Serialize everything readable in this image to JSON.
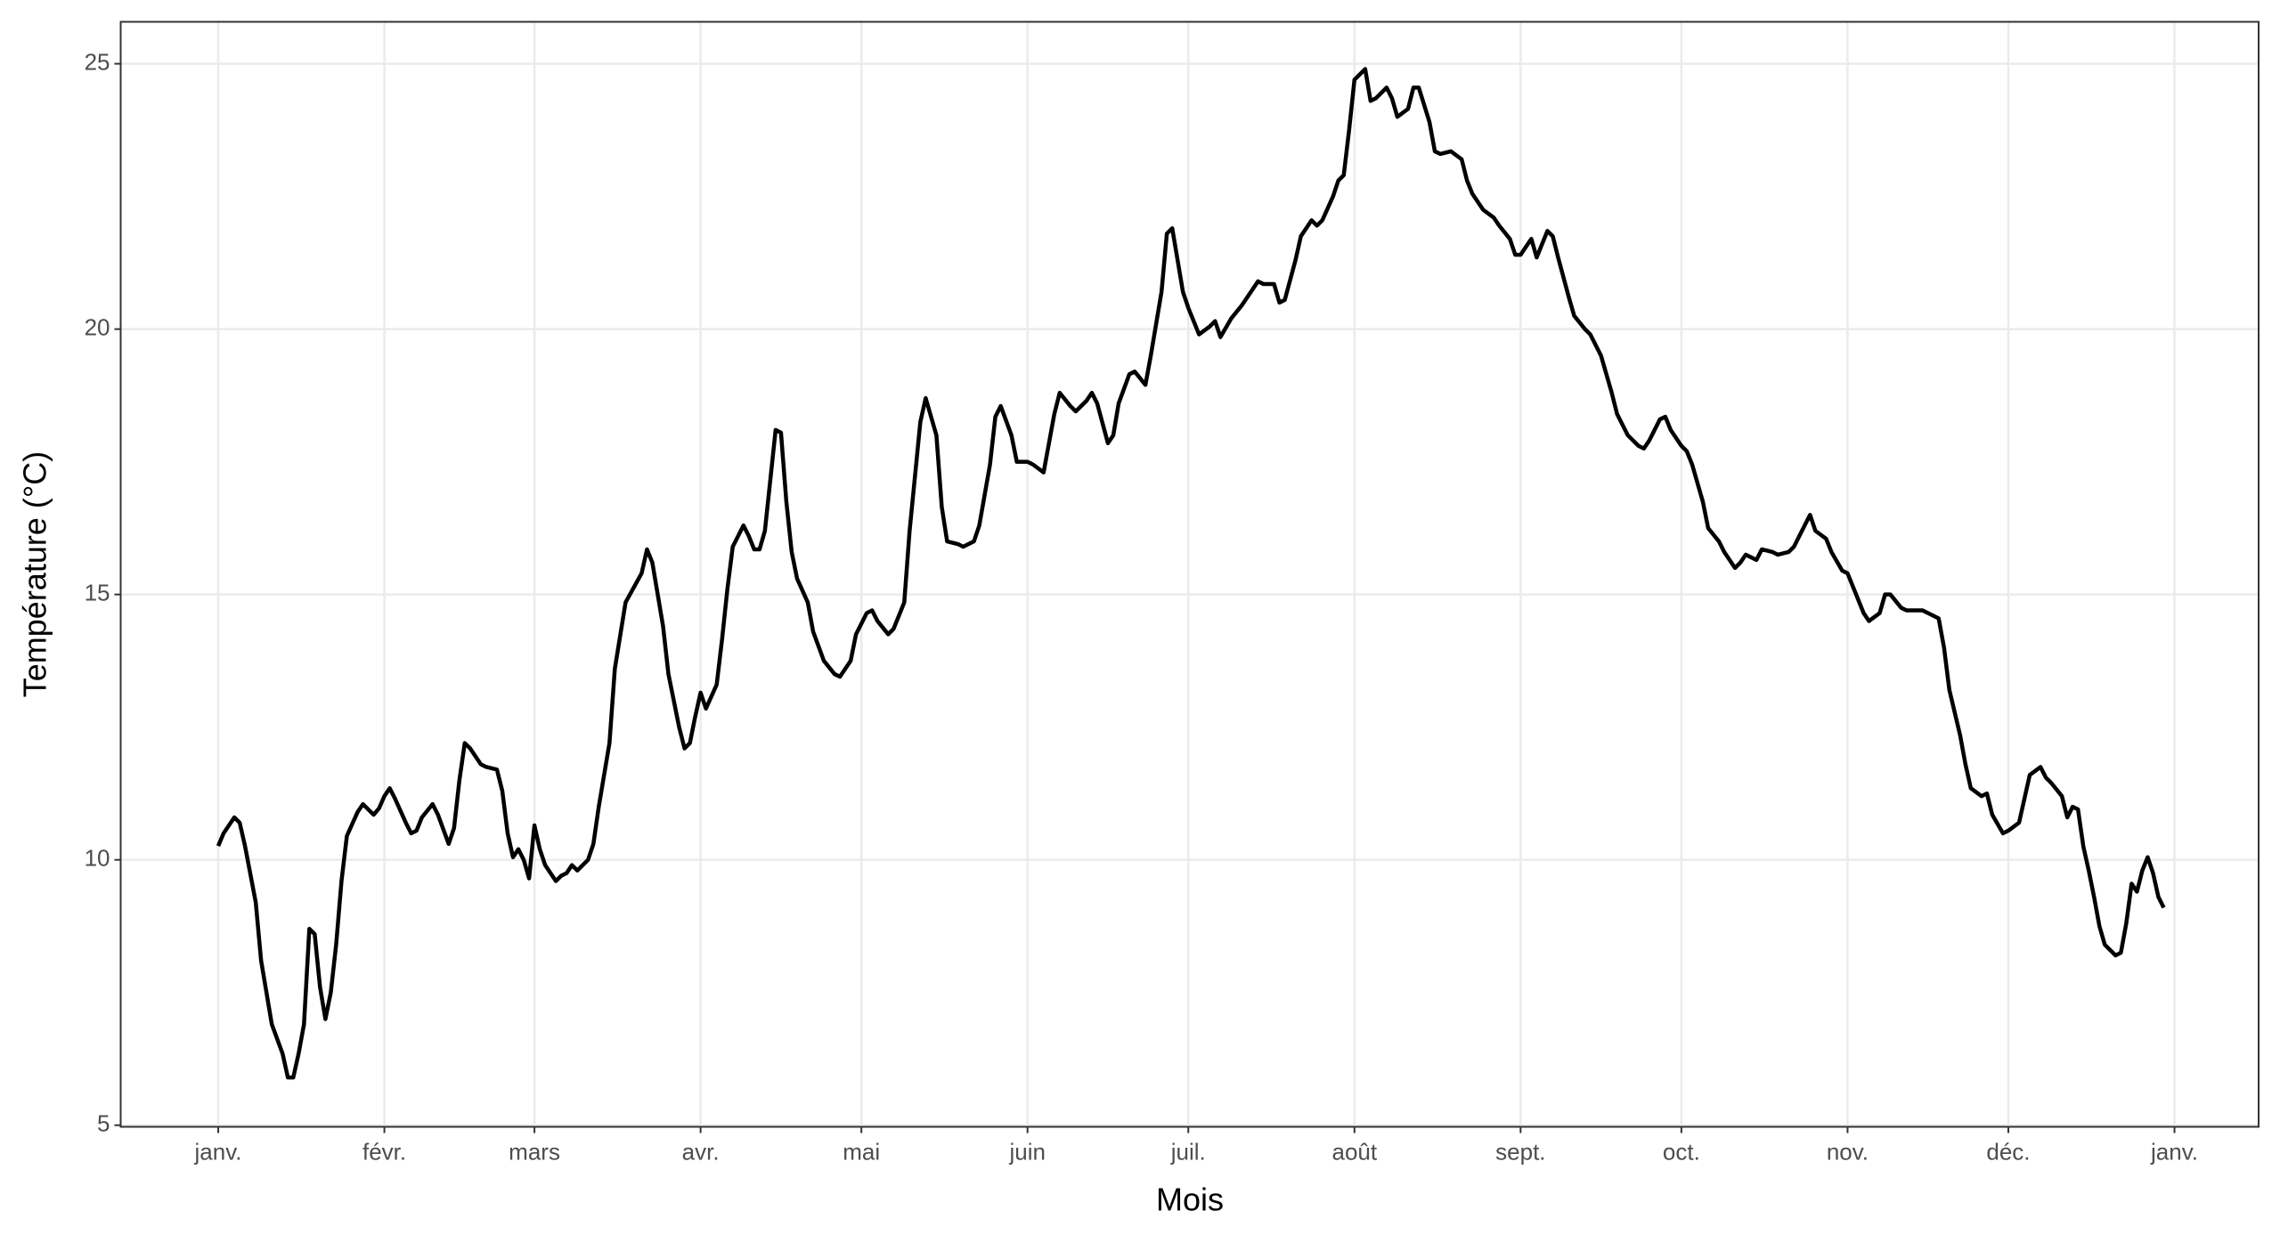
{
  "chart_data": {
    "type": "line",
    "x_label": "Mois",
    "y_label": "Température (°C)",
    "color": "#000000",
    "grid": true,
    "xlim": [
      -17.2,
      381.7
    ],
    "ylim": [
      4.97,
      25.79
    ],
    "xticks": [
      {
        "value": 1,
        "label": "janv."
      },
      {
        "value": 32,
        "label": "févr."
      },
      {
        "value": 60,
        "label": "mars"
      },
      {
        "value": 91,
        "label": "avr."
      },
      {
        "value": 121,
        "label": "mai"
      },
      {
        "value": 152,
        "label": "juin"
      },
      {
        "value": 182,
        "label": "juil."
      },
      {
        "value": 213,
        "label": "août"
      },
      {
        "value": 244,
        "label": "sept."
      },
      {
        "value": 274,
        "label": "oct."
      },
      {
        "value": 305,
        "label": "nov."
      },
      {
        "value": 335,
        "label": "déc."
      },
      {
        "value": 366,
        "label": "janv."
      }
    ],
    "yticks": [
      5,
      10,
      15,
      20,
      25
    ],
    "x": [
      1,
      2,
      4,
      5,
      6,
      8,
      9,
      11,
      13,
      14,
      15,
      16,
      17,
      18,
      19,
      20,
      21,
      22,
      23,
      24,
      25,
      27,
      28,
      29,
      30,
      31,
      32,
      33,
      34,
      36,
      37,
      38,
      39,
      41,
      42,
      44,
      45,
      46,
      47,
      48,
      50,
      51,
      53,
      54,
      55,
      56,
      57,
      58,
      59,
      60,
      61,
      62,
      64,
      65,
      66,
      67,
      68,
      70,
      71,
      72,
      74,
      75,
      77,
      80,
      81,
      82,
      84,
      85,
      87,
      88,
      89,
      90,
      91,
      92,
      94,
      95,
      96,
      97,
      99,
      100,
      101,
      102,
      103,
      104,
      105,
      106,
      107,
      108,
      109,
      111,
      112,
      114,
      116,
      117,
      119,
      120,
      122,
      123,
      124,
      126,
      127,
      129,
      130,
      132,
      133,
      135,
      136,
      137,
      139,
      140,
      142,
      143,
      145,
      146,
      147,
      149,
      150,
      152,
      153,
      155,
      156,
      157,
      158,
      160,
      161,
      163,
      164,
      165,
      167,
      168,
      169,
      171,
      172,
      174,
      175,
      177,
      178,
      179,
      181,
      182,
      184,
      186,
      187,
      188,
      190,
      192,
      193,
      195,
      196,
      198,
      199,
      200,
      202,
      203,
      205,
      206,
      207,
      209,
      210,
      211,
      212,
      213,
      215,
      216,
      217,
      219,
      220,
      221,
      223,
      224,
      225,
      227,
      228,
      229,
      231,
      233,
      234,
      235,
      237,
      239,
      240,
      242,
      243,
      244,
      246,
      247,
      249,
      250,
      251,
      253,
      254,
      256,
      257,
      259,
      261,
      262,
      264,
      266,
      267,
      268,
      270,
      271,
      272,
      274,
      275,
      276,
      278,
      279,
      281,
      282,
      284,
      285,
      286,
      288,
      289,
      291,
      292,
      294,
      295,
      297,
      298,
      299,
      301,
      302,
      304,
      305,
      307,
      308,
      309,
      311,
      312,
      313,
      315,
      316,
      318,
      319,
      320,
      322,
      323,
      324,
      326,
      327,
      328,
      330,
      331,
      332,
      334,
      335,
      337,
      338,
      339,
      341,
      342,
      343,
      345,
      346,
      347,
      348,
      349,
      350,
      351,
      352,
      353,
      354,
      355,
      356,
      357,
      358,
      359,
      360,
      361,
      362,
      363,
      364
    ],
    "values": [
      10.26,
      10.5,
      10.8,
      10.7,
      10.26,
      9.2,
      8.1,
      6.9,
      6.35,
      5.9,
      5.9,
      6.35,
      6.9,
      8.7,
      8.6,
      7.6,
      7.0,
      7.5,
      8.4,
      9.6,
      10.45,
      10.9,
      11.05,
      10.95,
      10.85,
      10.97,
      11.2,
      11.35,
      11.15,
      10.7,
      10.5,
      10.55,
      10.8,
      11.05,
      10.85,
      10.3,
      10.6,
      11.5,
      12.2,
      12.1,
      11.8,
      11.75,
      11.7,
      11.3,
      10.5,
      10.05,
      10.2,
      10.0,
      9.65,
      10.65,
      10.2,
      9.9,
      9.6,
      9.7,
      9.75,
      9.9,
      9.8,
      10.0,
      10.3,
      11.0,
      12.2,
      13.6,
      14.85,
      15.4,
      15.85,
      15.6,
      14.4,
      13.5,
      12.5,
      12.1,
      12.2,
      12.7,
      13.15,
      12.85,
      13.3,
      14.15,
      15.1,
      15.9,
      16.3,
      16.1,
      15.85,
      15.85,
      16.2,
      17.15,
      18.1,
      18.05,
      16.75,
      15.8,
      15.3,
      14.85,
      14.3,
      13.75,
      13.5,
      13.45,
      13.75,
      14.25,
      14.65,
      14.7,
      14.5,
      14.25,
      14.35,
      14.85,
      16.2,
      18.25,
      18.7,
      18.0,
      16.65,
      16.0,
      15.95,
      15.9,
      16.0,
      16.3,
      17.45,
      18.35,
      18.55,
      18.0,
      17.5,
      17.5,
      17.45,
      17.3,
      17.85,
      18.4,
      18.8,
      18.55,
      18.45,
      18.65,
      18.8,
      18.6,
      17.85,
      18.0,
      18.6,
      19.15,
      19.2,
      18.95,
      19.5,
      20.7,
      21.8,
      21.9,
      20.7,
      20.4,
      19.9,
      20.05,
      20.15,
      19.85,
      20.2,
      20.45,
      20.6,
      20.9,
      20.85,
      20.85,
      20.5,
      20.55,
      21.3,
      21.75,
      22.05,
      21.95,
      22.05,
      22.5,
      22.8,
      22.9,
      23.75,
      24.7,
      24.9,
      24.3,
      24.35,
      24.55,
      24.35,
      24.0,
      24.15,
      24.55,
      24.55,
      23.9,
      23.35,
      23.3,
      23.35,
      23.2,
      22.8,
      22.55,
      22.25,
      22.1,
      21.95,
      21.7,
      21.4,
      21.4,
      21.7,
      21.35,
      21.85,
      21.75,
      21.35,
      20.6,
      20.25,
      20.0,
      19.9,
      19.5,
      18.8,
      18.4,
      18.0,
      17.8,
      17.75,
      17.9,
      18.3,
      18.35,
      18.1,
      17.8,
      17.7,
      17.45,
      16.75,
      16.25,
      16.0,
      15.8,
      15.5,
      15.6,
      15.75,
      15.65,
      15.85,
      15.8,
      15.75,
      15.8,
      15.9,
      16.3,
      16.5,
      16.2,
      16.05,
      15.8,
      15.45,
      15.4,
      14.9,
      14.65,
      14.5,
      14.65,
      15.0,
      15.0,
      14.75,
      14.7,
      14.7,
      14.7,
      14.65,
      14.55,
      14.0,
      13.2,
      12.35,
      11.8,
      11.35,
      11.2,
      11.25,
      10.85,
      10.5,
      10.55,
      10.7,
      11.15,
      11.6,
      11.75,
      11.55,
      11.45,
      11.2,
      10.8,
      11.0,
      10.95,
      10.25,
      9.8,
      9.3,
      8.75,
      8.4,
      8.3,
      8.2,
      8.25,
      8.8,
      9.55,
      9.4,
      9.8,
      10.05,
      9.75,
      9.3,
      9.1
    ]
  }
}
